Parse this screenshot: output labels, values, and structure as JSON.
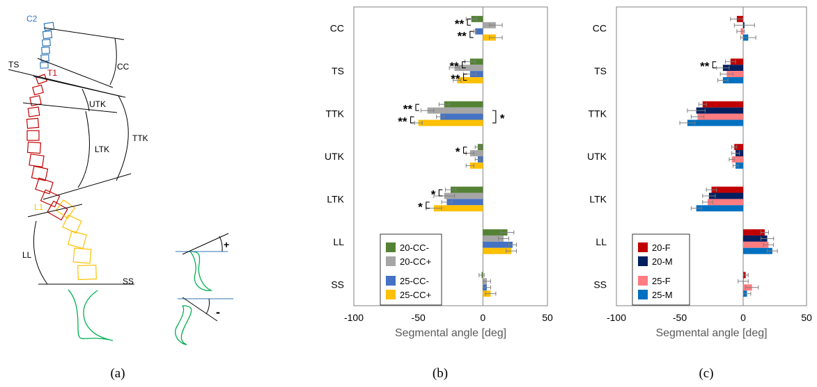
{
  "captions": [
    "(a)",
    "(b)",
    "(c)"
  ],
  "diagram": {
    "labels": {
      "c2": "C2",
      "t1": "T1",
      "l1": "L1",
      "ts": "TS",
      "cc": "CC",
      "utk": "UTK",
      "ltk": "LTK",
      "ttk": "TTK",
      "ll": "LL",
      "ss": "SS"
    },
    "sign_positive": "+",
    "sign_negative": "-",
    "colors": {
      "cervical": "#2e75b6",
      "thoracic": "#c00000",
      "lumbar": "#ffc000",
      "pelvis": "#00b050"
    }
  },
  "chart_data": [
    {
      "type": "bar",
      "orientation": "horizontal",
      "categories": [
        "CC",
        "TS",
        "TTK",
        "UTK",
        "LTK",
        "LL",
        "SS"
      ],
      "xlabel": "Segmental angle [deg]",
      "xlim": [
        -100,
        50
      ],
      "xticks": [
        -100,
        -50,
        0,
        50
      ],
      "legend_position": "bottom-left",
      "series": [
        {
          "name": "20-CC-",
          "color": "#548235",
          "values": [
            -9,
            -10,
            -30,
            -4,
            -25,
            19,
            -1
          ],
          "errors": [
            4,
            4,
            4,
            2,
            4,
            5,
            2
          ]
        },
        {
          "name": "20-CC+",
          "color": "#a6a6a6",
          "values": [
            10,
            -22,
            -43,
            -10,
            -30,
            16,
            3
          ],
          "errors": [
            5,
            4,
            5,
            3,
            8,
            4,
            3
          ]
        },
        {
          "name": "25-CC-",
          "color": "#4472c4",
          "values": [
            -6,
            -10,
            -33,
            -4,
            -28,
            23,
            3
          ],
          "errors": [
            1,
            5,
            3,
            2,
            4,
            3,
            3
          ]
        },
        {
          "name": "25-CC+",
          "color": "#ffc000",
          "values": [
            10,
            -20,
            -50,
            -10,
            -38,
            22,
            6
          ],
          "errors": [
            5,
            3,
            3,
            3,
            6,
            4,
            4
          ]
        }
      ],
      "significance": [
        {
          "category": "CC",
          "label": "**"
        },
        {
          "category": "CC",
          "label": "**"
        },
        {
          "category": "TS",
          "label": "**"
        },
        {
          "category": "TS",
          "label": "**"
        },
        {
          "category": "TTK",
          "label": "**"
        },
        {
          "category": "TTK",
          "label": "**"
        },
        {
          "category": "TTK",
          "label": "*"
        },
        {
          "category": "UTK",
          "label": "*"
        },
        {
          "category": "LTK",
          "label": "*"
        },
        {
          "category": "LTK",
          "label": "*"
        }
      ]
    },
    {
      "type": "bar",
      "orientation": "horizontal",
      "categories": [
        "CC",
        "TS",
        "TTK",
        "UTK",
        "LTK",
        "LL",
        "SS"
      ],
      "xlabel": "Segmental angle [deg]",
      "xlim": [
        -100,
        50
      ],
      "xticks": [
        -100,
        -50,
        0,
        50
      ],
      "legend_position": "bottom-left",
      "series": [
        {
          "name": "20-F",
          "color": "#c00000",
          "values": [
            -5,
            -10,
            -32,
            -7,
            -25,
            17,
            2
          ],
          "errors": [
            5,
            4,
            3,
            2,
            4,
            3,
            2
          ]
        },
        {
          "name": "20-M",
          "color": "#002060",
          "values": [
            1,
            -16,
            -37,
            -6,
            -27,
            19,
            0
          ],
          "errors": [
            8,
            5,
            7,
            3,
            5,
            5,
            4
          ]
        },
        {
          "name": "25-F",
          "color": "#ff7c80",
          "values": [
            -2,
            -13,
            -36,
            -9,
            -28,
            20,
            7
          ],
          "errors": [
            3,
            5,
            5,
            2,
            4,
            4,
            5
          ]
        },
        {
          "name": "25-M",
          "color": "#0070c0",
          "values": [
            4,
            -16,
            -44,
            -6,
            -37,
            23,
            3
          ],
          "errors": [
            6,
            4,
            6,
            2,
            4,
            4,
            3
          ]
        }
      ],
      "significance": [
        {
          "category": "TS",
          "label": "**"
        }
      ]
    }
  ]
}
